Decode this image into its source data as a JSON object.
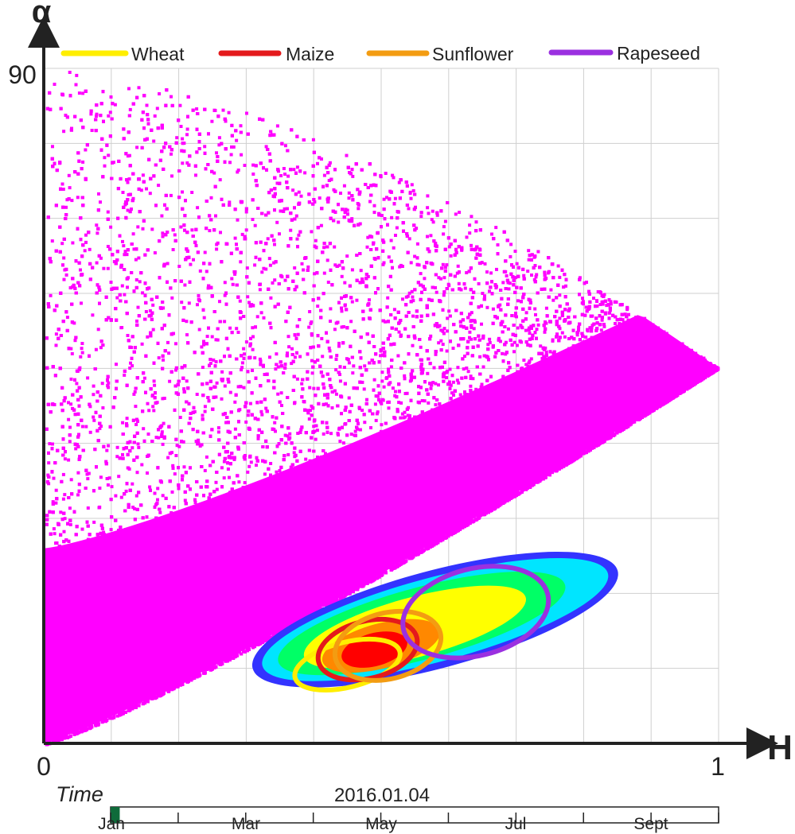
{
  "chart_data": {
    "type": "scatter",
    "title": "",
    "xlabel": "H",
    "ylabel": "α",
    "xlim": [
      0,
      1
    ],
    "ylim": [
      0,
      90
    ],
    "x_tick_labels": [
      "0",
      "1"
    ],
    "y_tick_labels": [
      "90"
    ],
    "grid": true,
    "legend_position": "top",
    "series": [
      {
        "name": "Wheat",
        "color": "#ffee00",
        "ellipse": {
          "cx": 0.45,
          "cy": 10.5,
          "rx": 0.08,
          "ry": 3.0,
          "angle": -14
        }
      },
      {
        "name": "Maize",
        "color": "#e41a1c",
        "ellipse": {
          "cx": 0.48,
          "cy": 12.5,
          "rx": 0.075,
          "ry": 3.8,
          "angle": -14
        }
      },
      {
        "name": "Sunflower",
        "color": "#f39c12",
        "ellipse": {
          "cx": 0.51,
          "cy": 13.0,
          "rx": 0.08,
          "ry": 4.4,
          "angle": -14
        }
      },
      {
        "name": "Rapeseed",
        "color": "#9b30e0",
        "ellipse": {
          "cx": 0.64,
          "cy": 17.5,
          "rx": 0.11,
          "ry": 5.8,
          "angle": -14
        }
      }
    ],
    "density_colors": [
      "#ff00ff",
      "#3333ff",
      "#00e5ff",
      "#00ff66",
      "#ffff00",
      "#ff8800",
      "#ff0000"
    ],
    "boundary": {
      "upper_curve_note": "feasible region boundary from (0,90)-ish to H=1 at α≈50",
      "lower_curve_note": "lower boundary from (0,0) to H=1 at α≈50"
    }
  },
  "timeline": {
    "label": "Time",
    "date": "2016.01.04",
    "months": [
      "Jan",
      "Mar",
      "May",
      "Jul",
      "Sept"
    ],
    "progress": 0.015,
    "color": "#0f6b3a"
  }
}
